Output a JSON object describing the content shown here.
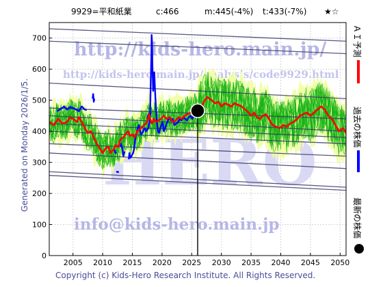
{
  "header": {
    "code_name": "9929=平和紙業",
    "current": "c:466",
    "medium": "m:445(-4%)",
    "long": "t:433(-7%)",
    "rating": "★☆"
  },
  "side_text": "Generated on Monday 2026/1/5.",
  "copyright": "Copyright (c) Kids-Hero Research Institute. All Rights Reserved.",
  "watermarks": {
    "site": "http://kids-hero.main.jp/",
    "analysis": "http://kids-hero.main.jp/analysis/code9929.html",
    "email": "info@kids-hero.main.jp",
    "logo": "HERO"
  },
  "legend": {
    "ai": "ＡＩ予測",
    "past": "過去の株価",
    "latest": "最新の株価"
  },
  "colors": {
    "background": "#ffffff",
    "ai_forecast": "#ff0000",
    "past_price": "#0000ff",
    "band_fill": "#f0ffa8",
    "band_line": "#10b010",
    "trend_line": "#3a3a6a",
    "marker": "#000000"
  },
  "chart_data": {
    "type": "line",
    "x_range": [
      2001,
      2051
    ],
    "y_range": [
      0,
      750
    ],
    "x_ticks": [
      "2005",
      "2010",
      "2015",
      "2020",
      "2025",
      "2030",
      "2035",
      "2040",
      "2045",
      "2050"
    ],
    "y_ticks": [
      "0",
      "100",
      "200",
      "300",
      "400",
      "500",
      "600",
      "700"
    ],
    "grid": true,
    "latest_point": {
      "x": 2026.0,
      "y": 466
    },
    "series": [
      {
        "kind": "past",
        "points": [
          [
            2014.4,
            310
          ],
          [
            2014.5,
            330
          ],
          [
            2014.7,
            315
          ],
          [
            2014.9,
            322
          ],
          [
            2015.1,
            330
          ],
          [
            2015.3,
            342
          ],
          [
            2015.5,
            378
          ],
          [
            2015.7,
            395
          ],
          [
            2015.9,
            410
          ],
          [
            2016.1,
            420
          ],
          [
            2016.3,
            400
          ],
          [
            2016.5,
            390
          ],
          [
            2016.7,
            395
          ],
          [
            2016.9,
            405
          ],
          [
            2017.1,
            410
          ],
          [
            2017.3,
            400
          ],
          [
            2017.5,
            405
          ],
          [
            2017.7,
            412
          ],
          [
            2017.9,
            430
          ],
          [
            2018.0,
            470
          ],
          [
            2018.1,
            560
          ],
          [
            2018.2,
            640
          ],
          [
            2018.25,
            710
          ],
          [
            2018.3,
            690
          ],
          [
            2018.4,
            600
          ],
          [
            2018.5,
            530
          ],
          [
            2018.6,
            570
          ],
          [
            2018.7,
            590
          ],
          [
            2018.8,
            540
          ],
          [
            2018.9,
            500
          ],
          [
            2019.0,
            470
          ],
          [
            2019.1,
            440
          ],
          [
            2019.2,
            420
          ],
          [
            2019.3,
            400
          ],
          [
            2019.5,
            395
          ],
          [
            2019.7,
            410
          ],
          [
            2019.9,
            420
          ],
          [
            2020.1,
            430
          ],
          [
            2020.3,
            400
          ],
          [
            2020.5,
            410
          ],
          [
            2020.7,
            420
          ],
          [
            2020.9,
            430
          ],
          [
            2021.2,
            445
          ],
          [
            2021.5,
            435
          ],
          [
            2021.8,
            440
          ],
          [
            2022.1,
            420
          ],
          [
            2022.4,
            425
          ],
          [
            2022.7,
            430
          ],
          [
            2023.0,
            440
          ],
          [
            2023.3,
            435
          ],
          [
            2023.6,
            445
          ],
          [
            2023.9,
            440
          ],
          [
            2024.2,
            435
          ],
          [
            2024.5,
            445
          ],
          [
            2024.8,
            450
          ],
          [
            2025.1,
            440
          ],
          [
            2025.4,
            455
          ],
          [
            2025.7,
            445
          ],
          [
            2026.0,
            466
          ]
        ]
      },
      {
        "kind": "past",
        "points": [
          [
            2013.0,
            350
          ],
          [
            2013.1,
            360
          ],
          [
            2013.3,
            345
          ],
          [
            2013.5,
            320
          ],
          [
            2013.7,
            335
          ]
        ]
      },
      {
        "kind": "past",
        "points": [
          [
            2002.3,
            465
          ],
          [
            2002.8,
            470
          ],
          [
            2003.5,
            480
          ],
          [
            2004.0,
            470
          ],
          [
            2004.5,
            478
          ],
          [
            2005.0,
            475
          ],
          [
            2005.5,
            470
          ],
          [
            2006.0,
            465
          ],
          [
            2006.5,
            480
          ],
          [
            2007.0,
            470
          ],
          [
            2007.3,
            468
          ]
        ]
      },
      {
        "kind": "past",
        "points": [
          [
            2012.0,
            340
          ],
          [
            2012.15,
            330
          ],
          [
            2012.3,
            333
          ]
        ]
      },
      {
        "kind": "past",
        "points": [
          [
            2008.3,
            505
          ],
          [
            2008.4,
            520
          ],
          [
            2008.5,
            495
          ],
          [
            2008.6,
            505
          ]
        ]
      },
      {
        "kind": "past",
        "points": [
          [
            2012.3,
            268
          ],
          [
            2012.5,
            270
          ],
          [
            2012.7,
            267
          ]
        ]
      },
      {
        "kind": "past",
        "points": [
          [
            2017.5,
            440
          ],
          [
            2017.7,
            455
          ],
          [
            2017.9,
            445
          ],
          [
            2018.1,
            460
          ]
        ]
      },
      {
        "kind": "ai",
        "points": [
          [
            2001.0,
            430
          ],
          [
            2001.8,
            420
          ],
          [
            2002.5,
            440
          ],
          [
            2003.2,
            425
          ],
          [
            2004.0,
            430
          ],
          [
            2004.5,
            445
          ],
          [
            2005.0,
            440
          ],
          [
            2005.7,
            430
          ],
          [
            2006.0,
            445
          ],
          [
            2006.5,
            430
          ],
          [
            2007.0,
            410
          ],
          [
            2007.5,
            395
          ],
          [
            2008.0,
            400
          ],
          [
            2008.5,
            380
          ],
          [
            2009.0,
            360
          ],
          [
            2009.5,
            345
          ],
          [
            2010.0,
            330
          ],
          [
            2010.5,
            345
          ],
          [
            2011.0,
            350
          ],
          [
            2011.3,
            330
          ],
          [
            2011.8,
            340
          ],
          [
            2012.2,
            355
          ],
          [
            2012.6,
            350
          ],
          [
            2013.0,
            375
          ],
          [
            2013.5,
            380
          ],
          [
            2014.0,
            395
          ],
          [
            2014.3,
            400
          ],
          [
            2014.6,
            385
          ],
          [
            2015.0,
            390
          ],
          [
            2015.4,
            380
          ],
          [
            2015.8,
            400
          ],
          [
            2016.2,
            405
          ],
          [
            2016.7,
            415
          ],
          [
            2017.0,
            420
          ],
          [
            2017.5,
            430
          ],
          [
            2017.8,
            455
          ],
          [
            2018.0,
            440
          ],
          [
            2018.3,
            425
          ],
          [
            2018.6,
            440
          ],
          [
            2019.0,
            430
          ],
          [
            2019.4,
            435
          ],
          [
            2019.8,
            440
          ],
          [
            2020.3,
            450
          ],
          [
            2020.8,
            440
          ],
          [
            2021.3,
            445
          ],
          [
            2021.8,
            430
          ],
          [
            2022.3,
            435
          ],
          [
            2022.8,
            445
          ],
          [
            2023.3,
            440
          ],
          [
            2023.8,
            450
          ],
          [
            2024.3,
            455
          ],
          [
            2024.8,
            460
          ],
          [
            2025.3,
            465
          ],
          [
            2025.8,
            468
          ],
          [
            2026.2,
            470
          ],
          [
            2026.7,
            480
          ],
          [
            2027.2,
            500
          ],
          [
            2027.6,
            510
          ],
          [
            2028.0,
            505
          ],
          [
            2028.4,
            500
          ],
          [
            2029.0,
            490
          ],
          [
            2029.5,
            495
          ],
          [
            2030.0,
            480
          ],
          [
            2030.6,
            490
          ],
          [
            2031.2,
            485
          ],
          [
            2031.7,
            480
          ],
          [
            2032.2,
            490
          ],
          [
            2032.8,
            485
          ],
          [
            2033.4,
            480
          ],
          [
            2034.0,
            470
          ],
          [
            2034.6,
            460
          ],
          [
            2035.0,
            450
          ],
          [
            2035.5,
            460
          ],
          [
            2036.0,
            445
          ],
          [
            2036.5,
            440
          ],
          [
            2037.0,
            450
          ],
          [
            2037.5,
            455
          ],
          [
            2038.0,
            440
          ],
          [
            2038.6,
            420
          ],
          [
            2039.2,
            415
          ],
          [
            2039.8,
            410
          ],
          [
            2040.4,
            420
          ],
          [
            2041.0,
            415
          ],
          [
            2041.6,
            425
          ],
          [
            2042.2,
            430
          ],
          [
            2042.8,
            440
          ],
          [
            2043.2,
            450
          ],
          [
            2043.8,
            455
          ],
          [
            2044.4,
            460
          ],
          [
            2045.0,
            450
          ],
          [
            2045.6,
            460
          ],
          [
            2046.2,
            470
          ],
          [
            2046.8,
            480
          ],
          [
            2047.4,
            470
          ],
          [
            2048.0,
            450
          ],
          [
            2048.6,
            440
          ],
          [
            2049.2,
            420
          ],
          [
            2049.8,
            400
          ],
          [
            2050.5,
            410
          ],
          [
            2051.0,
            395
          ]
        ]
      }
    ]
  }
}
